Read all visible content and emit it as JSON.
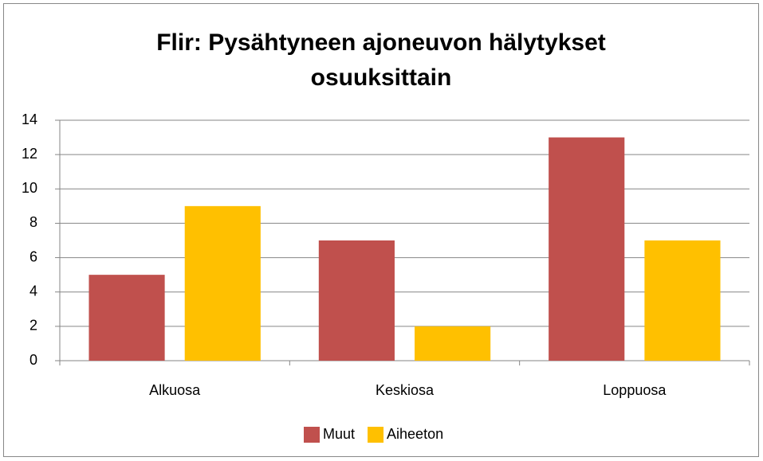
{
  "chart_data": {
    "type": "bar",
    "title": "Flir: Pysähtyneen ajoneuvon hälytykset osuuksittain",
    "categories": [
      "Alkuosa",
      "Keskiosa",
      "Loppuosa"
    ],
    "series": [
      {
        "name": "Muut",
        "color": "#c0504d",
        "values": [
          5,
          7,
          13
        ]
      },
      {
        "name": "Aiheeton",
        "color": "#ffc000",
        "values": [
          9,
          2,
          7
        ]
      }
    ],
    "ylim": [
      0,
      14
    ],
    "yticks": [
      0,
      2,
      4,
      6,
      8,
      10,
      12,
      14
    ],
    "grid": true,
    "legend": "bottom"
  }
}
